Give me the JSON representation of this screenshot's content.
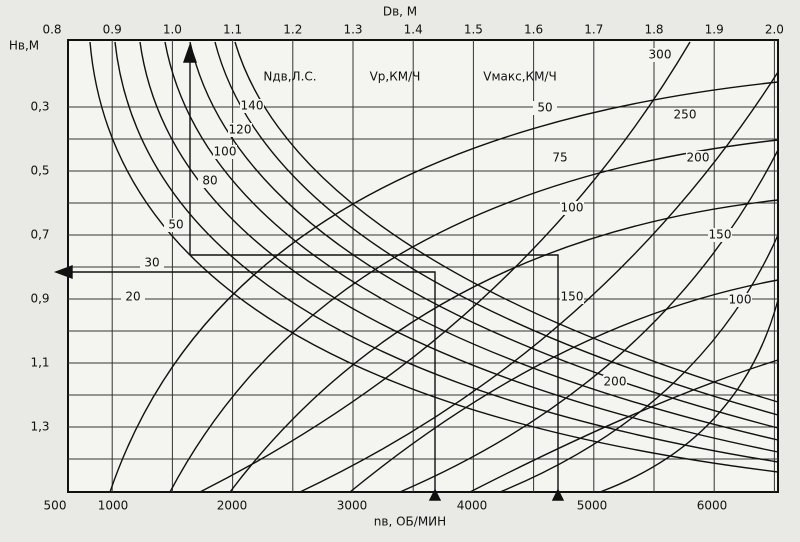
{
  "top_axis": {
    "title": "Dв, М",
    "ticks": [
      "0.8",
      "0.9",
      "1.0",
      "1.1",
      "1.2",
      "1.3",
      "1.4",
      "1.5",
      "1.6",
      "1.7",
      "1.8",
      "1.9",
      "2.0"
    ]
  },
  "left_axis": {
    "title": "Hв,М",
    "ticks": [
      "0,3",
      "0,5",
      "0,7",
      "0,9",
      "1,1",
      "1,3"
    ]
  },
  "bottom_axis": {
    "title": "nв, ОБ/МИН",
    "ticks": [
      "500",
      "1000",
      "2000",
      "3000",
      "4000",
      "5000",
      "6000"
    ]
  },
  "families": [
    {
      "title": "Nдв,Л.С.",
      "labels": [
        "140",
        "120",
        "100",
        "80",
        "50",
        "30",
        "20"
      ]
    },
    {
      "title": "Vр,КМ/Ч",
      "labels": [
        "50",
        "75",
        "100",
        "150",
        "200"
      ]
    },
    {
      "title": "Vмакс,КМ/Ч",
      "labels": [
        "300",
        "250",
        "200",
        "150",
        "100"
      ]
    }
  ]
}
